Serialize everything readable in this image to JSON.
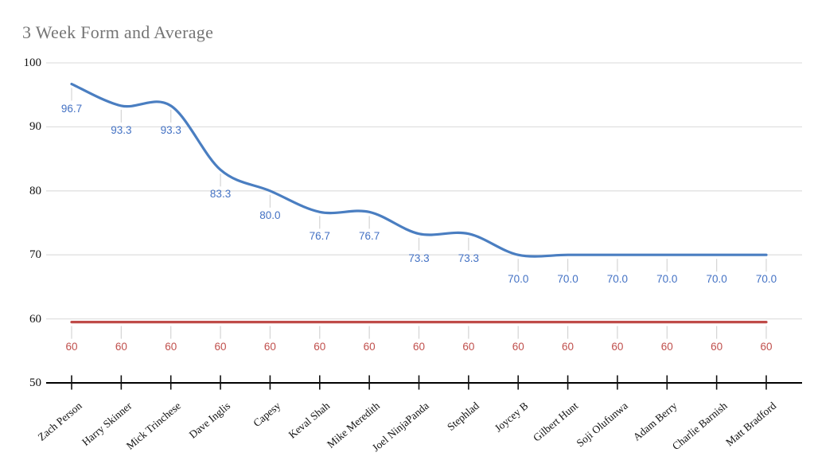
{
  "chart_data": {
    "type": "line",
    "title": "3 Week Form and Average",
    "title_color": "#757575",
    "categories": [
      "Zach Person",
      "Harry Skinner",
      "Mick Trinchese",
      "Dave Inglis",
      "Capesy",
      "Keval Shah",
      "Mike Meredith",
      "Joel NinjaPanda",
      "Stephlad",
      "Joycey B",
      "Gilbert Hunt",
      "Soji Olufunwa",
      "Adam Berry",
      "Charlie Barnish",
      "Matt Bradford"
    ],
    "series": [
      {
        "id": "three-week-form-line",
        "color": "#4a7ec1",
        "label_color": "#4472c4",
        "smooth": true,
        "values": [
          96.7,
          93.3,
          93.3,
          83.3,
          80.0,
          76.7,
          76.7,
          73.3,
          73.3,
          70.0,
          70.0,
          70.0,
          70.0,
          70.0,
          70.0
        ],
        "labels": [
          "96.7",
          "93.3",
          "93.3",
          "83.3",
          "80.0",
          "76.7",
          "76.7",
          "73.3",
          "73.3",
          "70.0",
          "70.0",
          "70.0",
          "70.0",
          "70.0",
          "70.0"
        ]
      },
      {
        "id": "average-line",
        "color": "#bf4b48",
        "label_color": "#c0504d",
        "smooth": false,
        "values": [
          60,
          60,
          60,
          60,
          60,
          60,
          60,
          60,
          60,
          60,
          60,
          60,
          60,
          60,
          60
        ],
        "labels": [
          "60",
          "60",
          "60",
          "60",
          "60",
          "60",
          "60",
          "60",
          "60",
          "60",
          "60",
          "60",
          "60",
          "60",
          "60"
        ]
      }
    ],
    "ylim": [
      50,
      100
    ],
    "ytick_labels": [
      "100",
      "90",
      "80",
      "70",
      "60",
      "50"
    ],
    "grid": true,
    "legend": "none",
    "style": {
      "gridline_color": "#e0e0e0",
      "axis_color": "#000000",
      "tick_color": "#111111",
      "leader_color": "#d4d4d4",
      "background": "#ffffff"
    }
  }
}
